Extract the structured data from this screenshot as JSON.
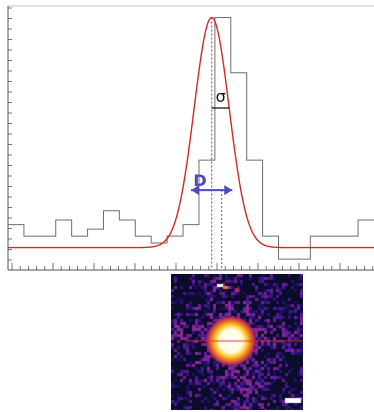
{
  "chart_data": {
    "type": "histogram_with_fit",
    "title": "",
    "xlabel": "",
    "ylabel": "",
    "x": [
      -12,
      -11,
      -10,
      -9,
      -8,
      -7,
      -6,
      -5,
      -4,
      -3,
      -2,
      -1,
      0,
      1,
      2,
      3,
      4,
      5,
      6,
      7,
      8,
      9,
      10
    ],
    "histogram_counts": [
      0.1,
      0.05,
      0.05,
      0.12,
      0.05,
      0.08,
      0.16,
      0.12,
      0.05,
      0.02,
      0.05,
      0.1,
      0.38,
      1.0,
      0.76,
      0.38,
      0.05,
      -0.05,
      -0.05,
      0.05,
      0.05,
      0.05,
      0.12
    ],
    "series": [
      {
        "type": "line",
        "function": "gaussian",
        "mean": 0.3,
        "sigma": 1.1,
        "amplitude": 1.0,
        "baseline": 0.0,
        "color": "#d62728"
      }
    ],
    "annotations": {
      "sigma_label": "σ",
      "fwhm_label": "D",
      "fwhm_color": "#4b4bbd"
    },
    "ylim": [
      -0.08,
      1.05
    ],
    "xlim": [
      -12.5,
      10.5
    ]
  },
  "inset": {
    "colormap": "inferno"
  }
}
